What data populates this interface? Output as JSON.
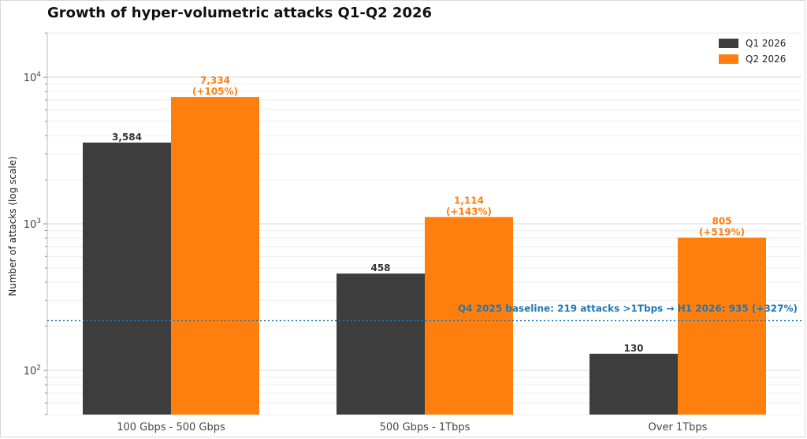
{
  "chart_data": {
    "type": "bar",
    "title": "Growth of hyper-volumetric attacks Q1-Q2 2026",
    "ylabel": "Number of attacks (log scale)",
    "xlabel": "",
    "yscale": "log",
    "ylim": [
      50,
      20000
    ],
    "yticks": [
      {
        "value": 100,
        "base": "10",
        "exp": "2"
      },
      {
        "value": 1000,
        "base": "10",
        "exp": "3"
      },
      {
        "value": 10000,
        "base": "10",
        "exp": "4"
      }
    ],
    "grid": true,
    "legend_position": "top-right",
    "categories": [
      "100 Gbps - 500 Gbps",
      "500 Gbps - 1Tbps",
      "Over 1Tbps"
    ],
    "series": [
      {
        "name": "Q1 2026",
        "color": "#3d3d3d",
        "values": [
          3584,
          458,
          130
        ],
        "labels": [
          "3,584",
          "458",
          "130"
        ],
        "sublabels": [
          "",
          "",
          ""
        ]
      },
      {
        "name": "Q2 2026",
        "color": "#ff7f0e",
        "values": [
          7334,
          1114,
          805
        ],
        "labels": [
          "7,334",
          "1,114",
          "805"
        ],
        "sublabels": [
          "(+105%)",
          "(+143%)",
          "(+519%)"
        ]
      }
    ],
    "reference_line": {
      "value": 219,
      "color": "#1f77b4",
      "label": "Q4 2025 baseline: 219 attacks >1Tbps → H1 2026: 935 (+327%)"
    }
  }
}
